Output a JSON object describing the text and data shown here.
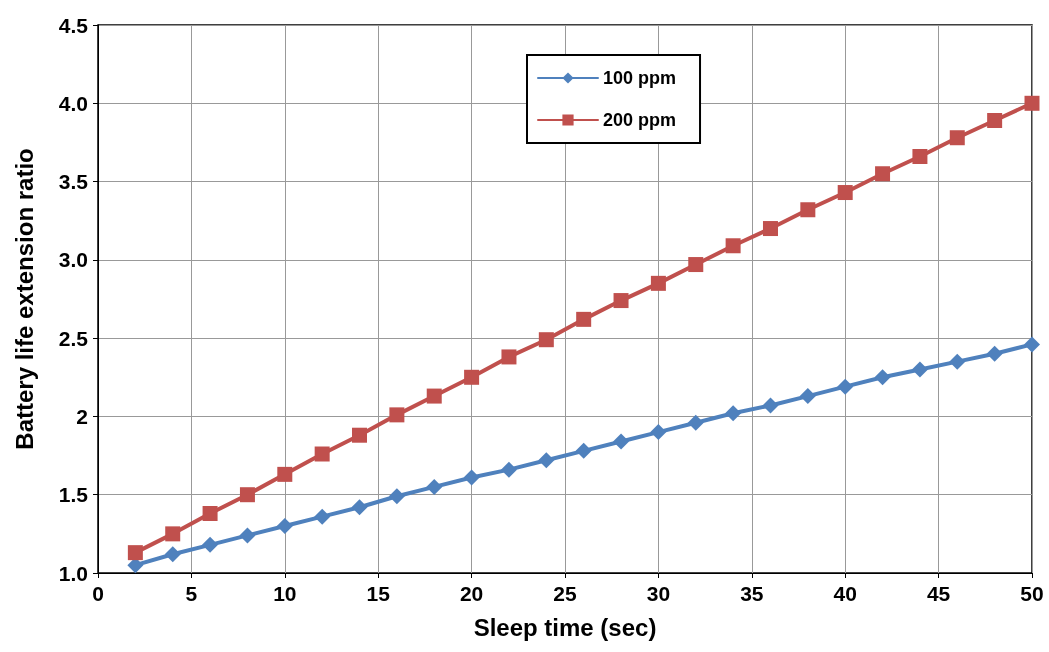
{
  "chart_data": {
    "type": "line",
    "xlabel": "Sleep time (sec)",
    "ylabel": "Battery life extension ratio",
    "x": [
      2,
      4,
      6,
      8,
      10,
      12,
      14,
      16,
      18,
      20,
      22,
      24,
      26,
      28,
      30,
      32,
      34,
      36,
      38,
      40,
      42,
      44,
      46,
      48,
      50
    ],
    "series": [
      {
        "name": "100 ppm",
        "color": "#4f81bd",
        "marker": "diamond",
        "values": [
          1.05,
          1.12,
          1.18,
          1.24,
          1.3,
          1.36,
          1.42,
          1.49,
          1.55,
          1.61,
          1.66,
          1.72,
          1.78,
          1.84,
          1.9,
          1.96,
          2.02,
          2.07,
          2.13,
          2.19,
          2.25,
          2.3,
          2.35,
          2.4,
          2.46
        ]
      },
      {
        "name": "200 ppm",
        "color": "#c0504d",
        "marker": "square",
        "values": [
          1.13,
          1.25,
          1.38,
          1.5,
          1.63,
          1.76,
          1.88,
          2.01,
          2.13,
          2.25,
          2.38,
          2.49,
          2.62,
          2.74,
          2.85,
          2.97,
          3.09,
          3.2,
          3.32,
          3.43,
          3.55,
          3.66,
          3.78,
          3.89,
          4.0
        ]
      }
    ],
    "xlim": [
      0,
      50
    ],
    "xticks": [
      0,
      5,
      10,
      15,
      20,
      25,
      30,
      35,
      40,
      45,
      50
    ],
    "ylim": [
      1.0,
      4.5
    ],
    "yticks": [
      {
        "value": 1.0,
        "label": "1.0"
      },
      1.5,
      2,
      2.5,
      {
        "value": 3.0,
        "label": "3.0"
      },
      3.5,
      {
        "value": 4.0,
        "label": "4.0"
      },
      4.5
    ],
    "grid": true,
    "legend": "top",
    "line_style": "solid"
  }
}
